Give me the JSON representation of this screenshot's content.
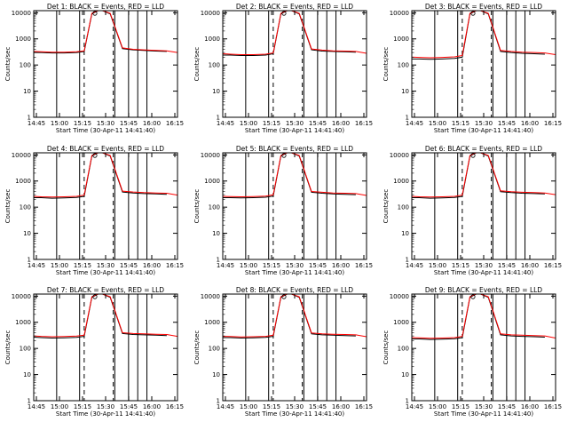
{
  "chart_data": [
    {
      "type": "line",
      "title": "Det 1: BLACK = Events, RED = LLD",
      "xlabel": "Start Time (30-Apr-11 14:41:40)",
      "ylabel": "Counts/sec",
      "xticks": [
        "14:45",
        "15:00",
        "15:15",
        "15:30",
        "15:45",
        "16:00",
        "16:15"
      ],
      "yticks": [
        "1",
        "10",
        "100",
        "1000",
        "10000"
      ],
      "yscale": "log",
      "ylim": [
        1,
        12000
      ],
      "xlim_minutes": [
        0,
        94
      ],
      "series": [
        {
          "color": "#000000",
          "x": [
            0,
            5,
            12,
            20,
            28,
            33,
            38,
            42,
            45,
            50,
            58,
            65,
            72,
            80,
            87
          ],
          "y": [
            300,
            300,
            290,
            290,
            300,
            330,
            9000,
            12000,
            12000,
            9000,
            420,
            380,
            360,
            340,
            330
          ]
        },
        {
          "color": "#ff0000",
          "x": [
            0,
            5,
            12,
            20,
            28,
            33,
            38,
            42,
            45,
            50,
            58,
            65,
            72,
            80,
            87,
            94
          ],
          "y": [
            330,
            320,
            310,
            310,
            320,
            350,
            9500,
            12000,
            12000,
            9500,
            450,
            400,
            380,
            360,
            350,
            300
          ]
        }
      ],
      "vlines_solid": [
        15,
        30,
        53,
        62,
        68,
        74
      ],
      "vlines_dashed": [
        33,
        52
      ]
    },
    {
      "type": "line",
      "title": "Det 2: BLACK = Events, RED = LLD",
      "xlabel": "Start Time (30-Apr-11 14:41:40)",
      "ylabel": "Counts/sec",
      "xticks": [
        "14:45",
        "15:00",
        "15:15",
        "15:30",
        "15:45",
        "16:00",
        "16:15"
      ],
      "yticks": [
        "1",
        "10",
        "100",
        "1000",
        "10000"
      ],
      "yscale": "log",
      "ylim": [
        1,
        12000
      ],
      "xlim_minutes": [
        0,
        94
      ],
      "series": [
        {
          "color": "#000000",
          "x": [
            0,
            5,
            12,
            20,
            28,
            33,
            38,
            42,
            45,
            50,
            58,
            65,
            72,
            80,
            87
          ],
          "y": [
            240,
            240,
            230,
            230,
            240,
            270,
            9000,
            12000,
            12000,
            9000,
            380,
            340,
            330,
            320,
            310
          ]
        },
        {
          "color": "#ff0000",
          "x": [
            0,
            5,
            12,
            20,
            28,
            33,
            38,
            42,
            45,
            50,
            58,
            65,
            72,
            80,
            87,
            94
          ],
          "y": [
            270,
            260,
            250,
            250,
            260,
            290,
            9500,
            12000,
            12000,
            9500,
            410,
            370,
            350,
            340,
            330,
            280
          ]
        }
      ],
      "vlines_solid": [
        15,
        30,
        53,
        62,
        68,
        74
      ],
      "vlines_dashed": [
        33,
        52
      ]
    },
    {
      "type": "line",
      "title": "Det 3: BLACK = Events, RED = LLD",
      "xlabel": "Start Time (30-Apr-11 14:41:40)",
      "ylabel": "Counts/sec",
      "xticks": [
        "14:45",
        "15:00",
        "15:15",
        "15:30",
        "15:45",
        "16:00",
        "16:15"
      ],
      "yticks": [
        "1",
        "10",
        "100",
        "1000",
        "10000"
      ],
      "yscale": "log",
      "ylim": [
        1,
        12000
      ],
      "xlim_minutes": [
        0,
        94
      ],
      "series": [
        {
          "color": "#000000",
          "x": [
            0,
            5,
            12,
            20,
            28,
            33,
            38,
            42,
            45,
            50,
            58,
            65,
            72,
            80,
            87
          ],
          "y": [
            170,
            170,
            165,
            170,
            180,
            200,
            9000,
            12000,
            12000,
            9000,
            330,
            300,
            280,
            270,
            260
          ]
        },
        {
          "color": "#ff0000",
          "x": [
            0,
            5,
            12,
            20,
            28,
            33,
            38,
            42,
            45,
            50,
            58,
            65,
            72,
            80,
            87,
            94
          ],
          "y": [
            200,
            195,
            190,
            195,
            205,
            230,
            9500,
            12000,
            12000,
            9500,
            360,
            330,
            310,
            300,
            290,
            250
          ]
        }
      ],
      "vlines_solid": [
        15,
        30,
        53,
        62,
        68,
        74
      ],
      "vlines_dashed": [
        33,
        52
      ]
    },
    {
      "type": "line",
      "title": "Det 4: BLACK = Events, RED = LLD",
      "xlabel": "Start Time (30-Apr-11 14:41:40)",
      "ylabel": "Counts/sec",
      "xticks": [
        "14:45",
        "15:00",
        "15:15",
        "15:30",
        "15:45",
        "16:00",
        "16:15"
      ],
      "yticks": [
        "1",
        "10",
        "100",
        "1000",
        "10000"
      ],
      "yscale": "log",
      "ylim": [
        1,
        12000
      ],
      "xlim_minutes": [
        0,
        94
      ],
      "series": [
        {
          "color": "#000000",
          "x": [
            0,
            5,
            12,
            20,
            28,
            33,
            38,
            42,
            45,
            50,
            58,
            65,
            72,
            80,
            87
          ],
          "y": [
            230,
            230,
            220,
            225,
            235,
            260,
            9000,
            12000,
            12000,
            9000,
            380,
            350,
            330,
            320,
            310
          ]
        },
        {
          "color": "#ff0000",
          "x": [
            0,
            5,
            12,
            20,
            28,
            33,
            38,
            42,
            45,
            50,
            58,
            65,
            72,
            80,
            87,
            94
          ],
          "y": [
            260,
            250,
            245,
            250,
            260,
            290,
            9500,
            12000,
            12000,
            9500,
            410,
            380,
            360,
            350,
            340,
            290
          ]
        }
      ],
      "vlines_solid": [
        15,
        30,
        53,
        62,
        68,
        74
      ],
      "vlines_dashed": [
        33,
        52
      ]
    },
    {
      "type": "line",
      "title": "Det 5: BLACK = Events, RED = LLD",
      "xlabel": "Start Time (30-Apr-11 14:41:40)",
      "ylabel": "Counts/sec",
      "xticks": [
        "14:45",
        "15:00",
        "15:15",
        "15:30",
        "15:45",
        "16:00",
        "16:15"
      ],
      "yticks": [
        "1",
        "10",
        "100",
        "1000",
        "10000"
      ],
      "yscale": "log",
      "ylim": [
        1,
        12000
      ],
      "xlim_minutes": [
        0,
        94
      ],
      "series": [
        {
          "color": "#000000",
          "x": [
            0,
            5,
            12,
            20,
            28,
            33,
            38,
            42,
            45,
            50,
            58,
            65,
            72,
            80,
            87
          ],
          "y": [
            230,
            230,
            225,
            230,
            240,
            265,
            9000,
            12000,
            12000,
            9000,
            370,
            340,
            320,
            310,
            300
          ]
        },
        {
          "color": "#ff0000",
          "x": [
            0,
            5,
            12,
            20,
            28,
            33,
            38,
            42,
            45,
            50,
            58,
            65,
            72,
            80,
            87,
            94
          ],
          "y": [
            260,
            255,
            250,
            255,
            265,
            295,
            9500,
            12000,
            12000,
            9500,
            400,
            370,
            350,
            340,
            330,
            280
          ]
        }
      ],
      "vlines_solid": [
        15,
        30,
        53,
        62,
        68,
        74
      ],
      "vlines_dashed": [
        33,
        52
      ]
    },
    {
      "type": "line",
      "title": "Det 6: BLACK = Events, RED = LLD",
      "xlabel": "Start Time (30-Apr-11 14:41:40)",
      "ylabel": "Counts/sec",
      "xticks": [
        "14:45",
        "15:00",
        "15:15",
        "15:30",
        "15:45",
        "16:00",
        "16:15"
      ],
      "yticks": [
        "1",
        "10",
        "100",
        "1000",
        "10000"
      ],
      "yscale": "log",
      "ylim": [
        1,
        12000
      ],
      "xlim_minutes": [
        0,
        94
      ],
      "series": [
        {
          "color": "#000000",
          "x": [
            0,
            5,
            12,
            20,
            28,
            33,
            38,
            42,
            45,
            50,
            58,
            65,
            72,
            80,
            87
          ],
          "y": [
            230,
            230,
            220,
            225,
            235,
            260,
            9000,
            12000,
            12000,
            9000,
            390,
            360,
            340,
            330,
            320
          ]
        },
        {
          "color": "#ff0000",
          "x": [
            0,
            5,
            12,
            20,
            28,
            33,
            38,
            42,
            45,
            50,
            58,
            65,
            72,
            80,
            87,
            94
          ],
          "y": [
            260,
            250,
            245,
            250,
            260,
            290,
            9500,
            12000,
            12000,
            9500,
            420,
            390,
            370,
            360,
            350,
            300
          ]
        }
      ],
      "vlines_solid": [
        15,
        30,
        53,
        62,
        68,
        74
      ],
      "vlines_dashed": [
        33,
        52
      ]
    },
    {
      "type": "line",
      "title": "Det 7: BLACK = Events, RED = LLD",
      "xlabel": "Start Time (30-Apr-11 14:41:40)",
      "ylabel": "Counts/sec",
      "xticks": [
        "14:45",
        "15:00",
        "15:15",
        "15:30",
        "15:45",
        "16:00",
        "16:15"
      ],
      "yticks": [
        "1",
        "10",
        "100",
        "1000",
        "10000"
      ],
      "yscale": "log",
      "ylim": [
        1,
        12000
      ],
      "xlim_minutes": [
        0,
        94
      ],
      "series": [
        {
          "color": "#000000",
          "x": [
            0,
            5,
            12,
            20,
            28,
            33,
            38,
            42,
            45,
            50,
            58,
            65,
            72,
            80,
            87
          ],
          "y": [
            270,
            260,
            250,
            255,
            265,
            290,
            9000,
            12000,
            12000,
            9000,
            370,
            340,
            330,
            320,
            310
          ]
        },
        {
          "color": "#ff0000",
          "x": [
            0,
            5,
            12,
            20,
            28,
            33,
            38,
            42,
            45,
            50,
            58,
            65,
            72,
            80,
            87,
            94
          ],
          "y": [
            300,
            290,
            280,
            285,
            295,
            320,
            9500,
            12000,
            12000,
            9500,
            400,
            370,
            360,
            350,
            340,
            290
          ]
        }
      ],
      "vlines_solid": [
        15,
        30,
        53,
        62,
        68,
        74
      ],
      "vlines_dashed": [
        33,
        52
      ]
    },
    {
      "type": "line",
      "title": "Det 8: BLACK = Events, RED = LLD",
      "xlabel": "Start Time (30-Apr-11 14:41:40)",
      "ylabel": "Counts/sec",
      "xticks": [
        "14:45",
        "15:00",
        "15:15",
        "15:30",
        "15:45",
        "16:00",
        "16:15"
      ],
      "yticks": [
        "1",
        "10",
        "100",
        "1000",
        "10000"
      ],
      "yscale": "log",
      "ylim": [
        1,
        12000
      ],
      "xlim_minutes": [
        0,
        94
      ],
      "series": [
        {
          "color": "#000000",
          "x": [
            0,
            5,
            12,
            20,
            28,
            33,
            38,
            42,
            45,
            50,
            58,
            65,
            72,
            80,
            87
          ],
          "y": [
            260,
            260,
            250,
            255,
            265,
            290,
            9000,
            12000,
            12000,
            9000,
            360,
            330,
            320,
            310,
            300
          ]
        },
        {
          "color": "#ff0000",
          "x": [
            0,
            5,
            12,
            20,
            28,
            33,
            38,
            42,
            45,
            50,
            58,
            65,
            72,
            80,
            87,
            94
          ],
          "y": [
            290,
            285,
            275,
            280,
            290,
            320,
            9500,
            12000,
            12000,
            9500,
            390,
            360,
            350,
            340,
            330,
            280
          ]
        }
      ],
      "vlines_solid": [
        15,
        30,
        53,
        62,
        68,
        74
      ],
      "vlines_dashed": [
        33,
        52
      ]
    },
    {
      "type": "line",
      "title": "Det 9: BLACK = Events, RED = LLD",
      "xlabel": "Start Time (30-Apr-11 14:41:40)",
      "ylabel": "Counts/sec",
      "xticks": [
        "14:45",
        "15:00",
        "15:15",
        "15:30",
        "15:45",
        "16:00",
        "16:15"
      ],
      "yticks": [
        "1",
        "10",
        "100",
        "1000",
        "10000"
      ],
      "yscale": "log",
      "ylim": [
        1,
        12000
      ],
      "xlim_minutes": [
        0,
        94
      ],
      "series": [
        {
          "color": "#000000",
          "x": [
            0,
            5,
            12,
            20,
            28,
            33,
            38,
            42,
            45,
            50,
            58,
            65,
            72,
            80,
            87
          ],
          "y": [
            230,
            230,
            220,
            225,
            235,
            260,
            9000,
            12000,
            12000,
            9000,
            330,
            300,
            290,
            280,
            270
          ]
        },
        {
          "color": "#ff0000",
          "x": [
            0,
            5,
            12,
            20,
            28,
            33,
            38,
            42,
            45,
            50,
            58,
            65,
            72,
            80,
            87,
            94
          ],
          "y": [
            260,
            255,
            245,
            250,
            260,
            290,
            9500,
            12000,
            12000,
            9500,
            360,
            330,
            320,
            310,
            300,
            250
          ]
        }
      ],
      "vlines_solid": [
        15,
        30,
        53,
        62,
        68,
        74
      ],
      "vlines_dashed": [
        33,
        52
      ]
    }
  ]
}
